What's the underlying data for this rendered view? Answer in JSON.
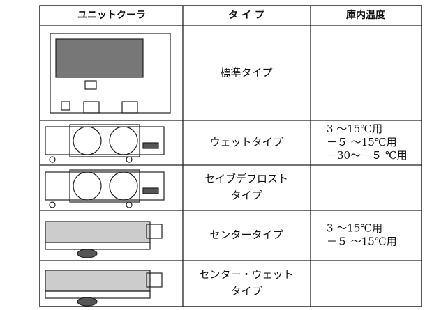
{
  "table": {
    "header": [
      "ユニットクーラ",
      "タ イ プ",
      "庫内温度"
    ],
    "rows": [
      {
        "type": [
          "標準タイプ"
        ]
      },
      {
        "type": [
          "ウェットタイプ"
        ],
        "temp": [
          "3 ～15℃用",
          "－５ ～15℃用",
          "－30～－５ ℃用"
        ]
      },
      {
        "type": [
          "セイブデフロスト",
          "タイプ"
        ]
      },
      {
        "type": [
          "センタータイプ"
        ],
        "temp": [
          "3 ～15℃用",
          "－５ ～15℃用"
        ]
      },
      {
        "type": [
          "センター・ウェット",
          "タイプ"
        ]
      }
    ]
  }
}
